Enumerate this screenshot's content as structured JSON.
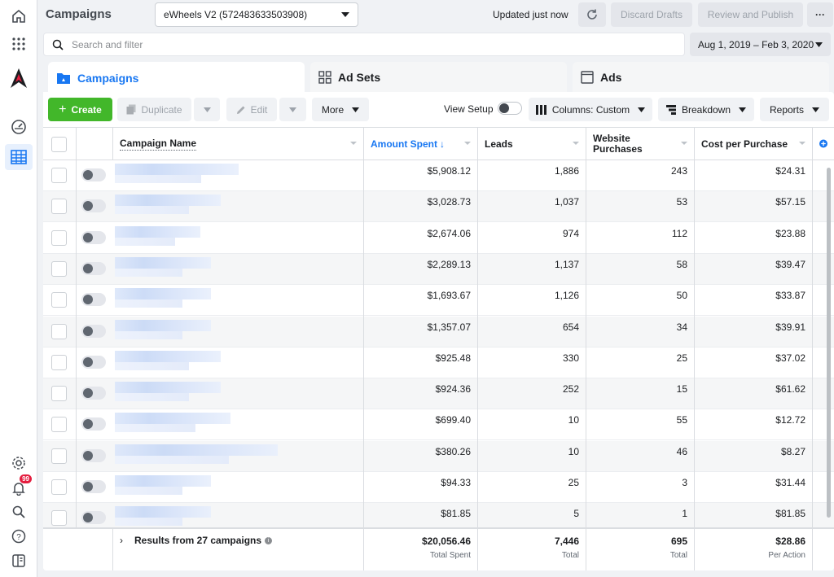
{
  "app": {
    "title": "Campaigns"
  },
  "header": {
    "account": "eWheels V2 (572483633503908)",
    "updated": "Updated just now",
    "discard": "Discard Drafts",
    "publish": "Review and Publish",
    "more": "···"
  },
  "search": {
    "placeholder": "Search and filter"
  },
  "daterange": "Aug 1, 2019 – Feb 3, 2020",
  "tabs": [
    {
      "label": "Campaigns"
    },
    {
      "label": "Ad Sets"
    },
    {
      "label": "Ads"
    }
  ],
  "toolbar": {
    "create": "Create",
    "duplicate": "Duplicate",
    "edit": "Edit",
    "more": "More",
    "view_setup": "View Setup",
    "columns": "Columns: Custom",
    "breakdown": "Breakdown",
    "reports": "Reports"
  },
  "columns": {
    "name": "Campaign Name",
    "amount": "Amount Spent",
    "leads": "Leads",
    "website_purchases": "Website Purchases",
    "cpp": "Cost per Purchase"
  },
  "rows": [
    {
      "amount": "$5,908.12",
      "leads": "1,886",
      "purchases": "243",
      "cpp": "$24.31"
    },
    {
      "amount": "$3,028.73",
      "leads": "1,037",
      "purchases": "53",
      "cpp": "$57.15"
    },
    {
      "amount": "$2,674.06",
      "leads": "974",
      "purchases": "112",
      "cpp": "$23.88"
    },
    {
      "amount": "$2,289.13",
      "leads": "1,137",
      "purchases": "58",
      "cpp": "$39.47"
    },
    {
      "amount": "$1,693.67",
      "leads": "1,126",
      "purchases": "50",
      "cpp": "$33.87"
    },
    {
      "amount": "$1,357.07",
      "leads": "654",
      "purchases": "34",
      "cpp": "$39.91"
    },
    {
      "amount": "$925.48",
      "leads": "330",
      "purchases": "25",
      "cpp": "$37.02"
    },
    {
      "amount": "$924.36",
      "leads": "252",
      "purchases": "15",
      "cpp": "$61.62"
    },
    {
      "amount": "$699.40",
      "leads": "10",
      "purchases": "55",
      "cpp": "$12.72"
    },
    {
      "amount": "$380.26",
      "leads": "10",
      "purchases": "46",
      "cpp": "$8.27"
    },
    {
      "amount": "$94.33",
      "leads": "25",
      "purchases": "3",
      "cpp": "$31.44"
    },
    {
      "amount": "$81.85",
      "leads": "5",
      "purchases": "1",
      "cpp": "$81.85"
    }
  ],
  "footer": {
    "results": "Results from 27 campaigns",
    "amount": "$20,056.46",
    "amount_label": "Total Spent",
    "leads": "7,446",
    "leads_label": "Total",
    "purchases": "695",
    "purchases_label": "Total",
    "cpp": "$28.86",
    "cpp_label": "Per Action"
  },
  "notifications": {
    "count": "99"
  },
  "colors": {
    "accent": "#1877f2",
    "create": "#42b72a",
    "badge": "#e41e3f"
  }
}
